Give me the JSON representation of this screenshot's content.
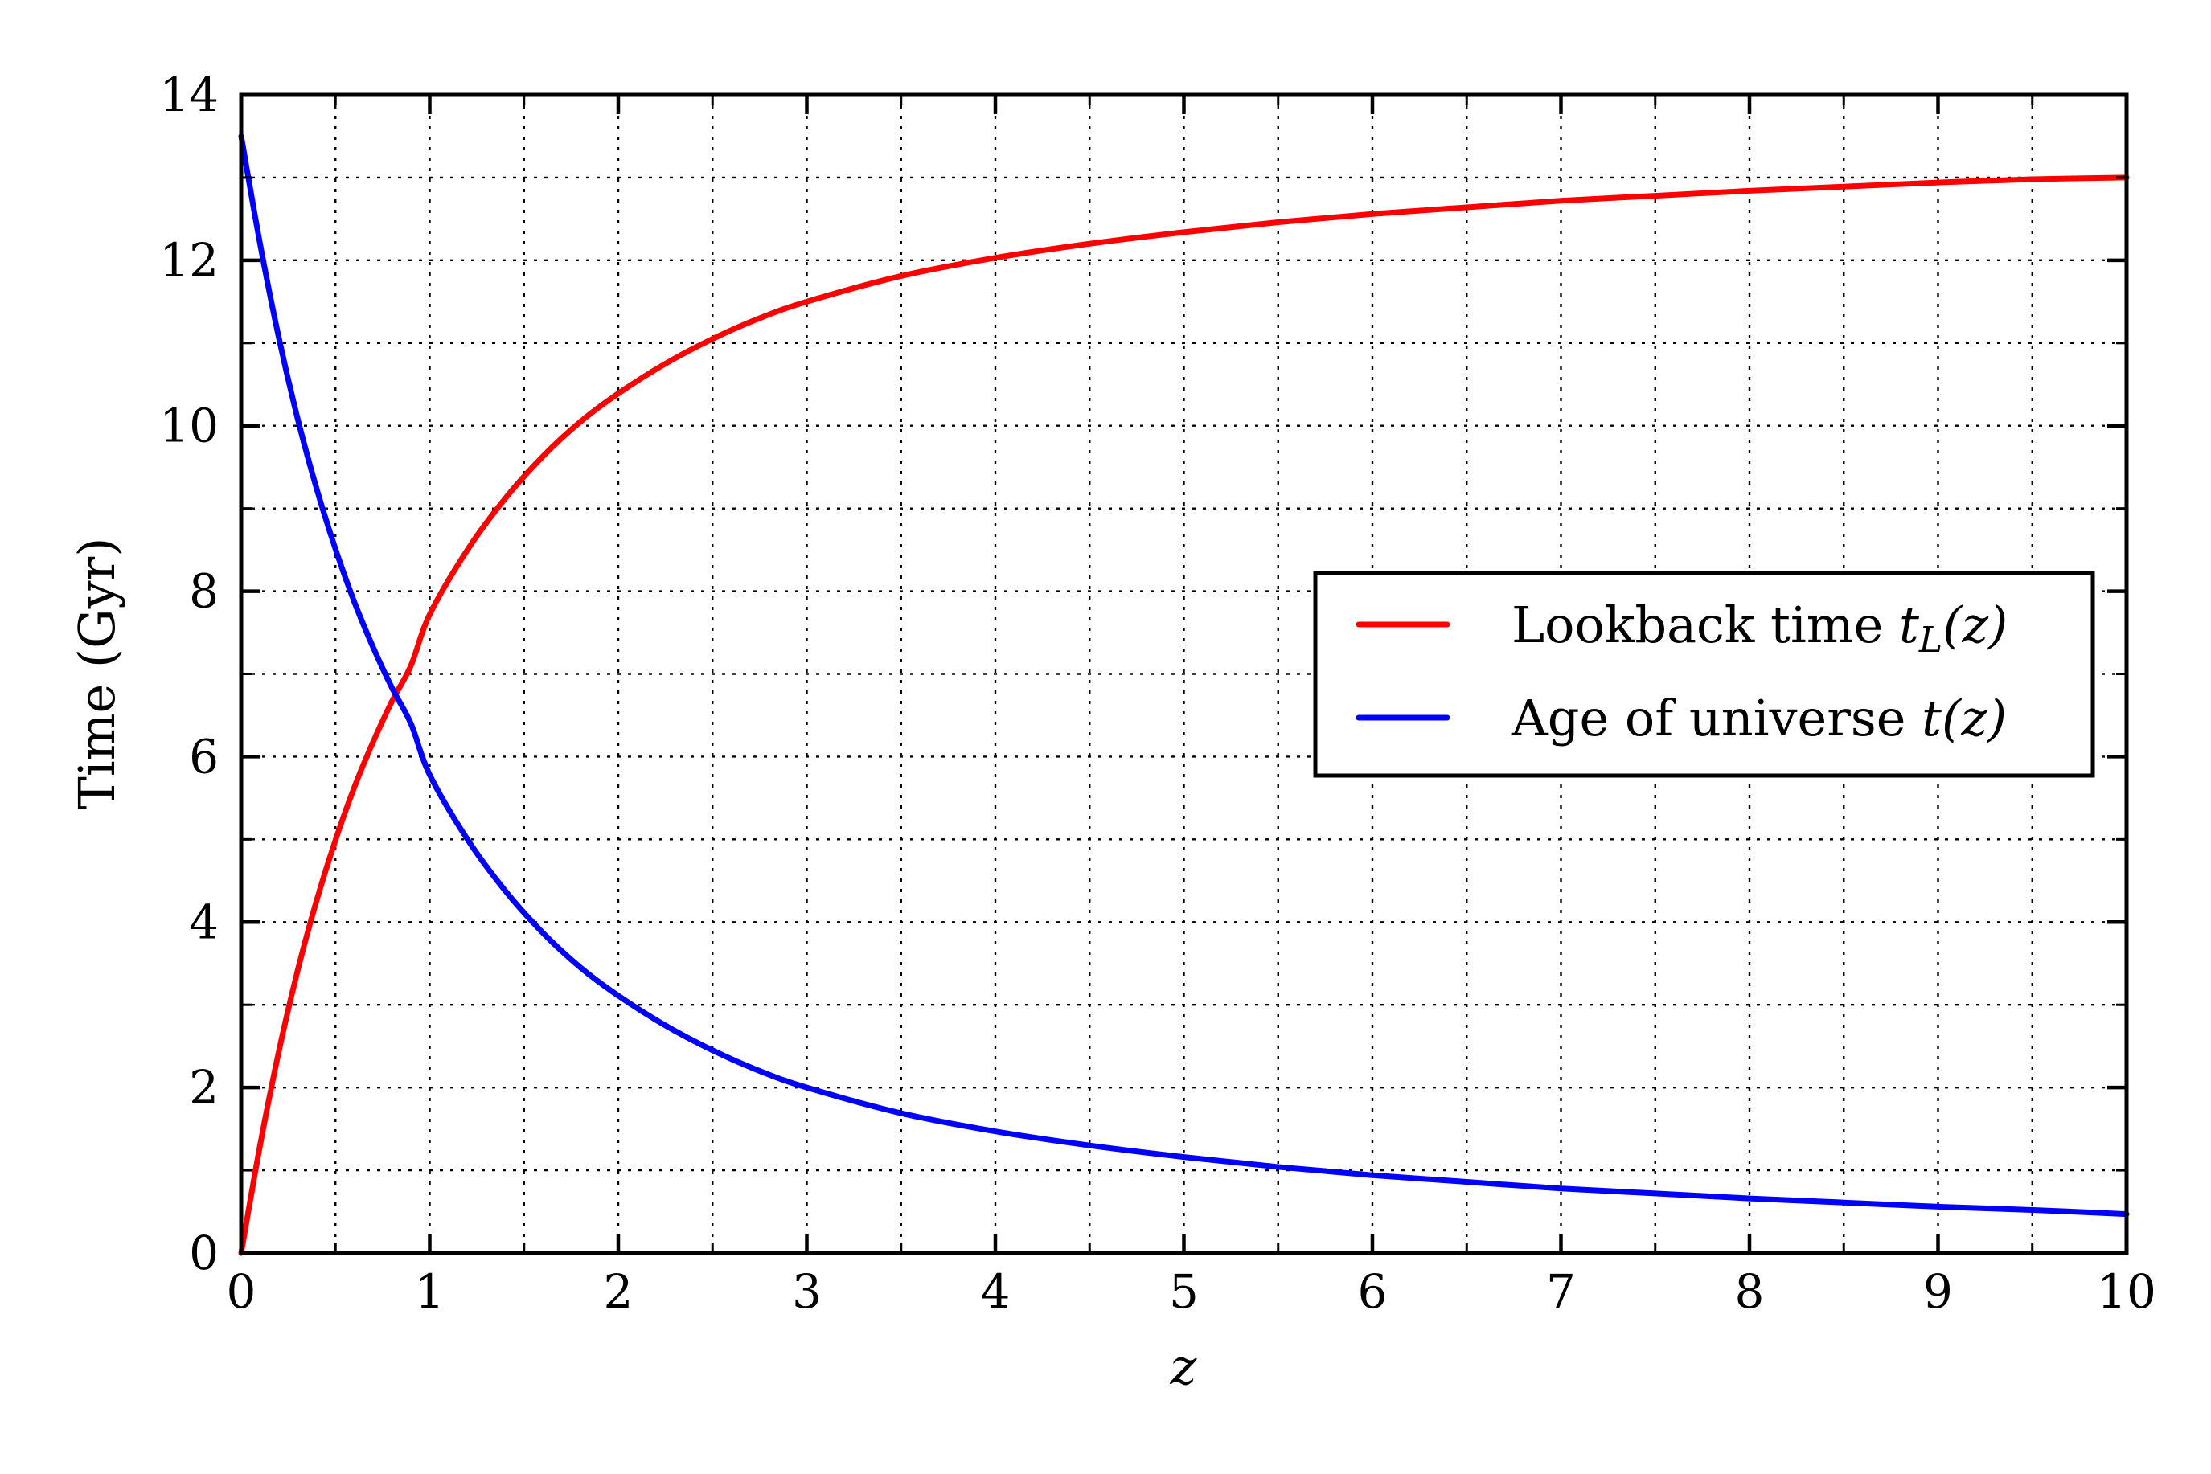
{
  "chart_data": {
    "type": "line",
    "xlabel": "z",
    "ylabel": "Time (Gyr)",
    "xlim": [
      0,
      10
    ],
    "ylim": [
      0,
      14
    ],
    "x_ticks": [
      0,
      1,
      2,
      3,
      4,
      5,
      6,
      7,
      8,
      9,
      10
    ],
    "y_ticks": [
      0,
      2,
      4,
      6,
      8,
      10,
      12,
      14
    ],
    "x_tick_labels": [
      "0",
      "1",
      "2",
      "3",
      "4",
      "5",
      "6",
      "7",
      "8",
      "9",
      "10"
    ],
    "y_tick_labels": [
      "0",
      "2",
      "4",
      "6",
      "8",
      "10",
      "12",
      "14"
    ],
    "x_minor_step": 0.5,
    "y_minor_step": 1,
    "grid": true,
    "legend_position": "center-right",
    "x": [
      0,
      0.1,
      0.2,
      0.3,
      0.4,
      0.5,
      0.6,
      0.7,
      0.8,
      0.9,
      1.0,
      1.2,
      1.4,
      1.6,
      1.8,
      2.0,
      2.25,
      2.5,
      2.75,
      3.0,
      3.5,
      4.0,
      4.5,
      5.0,
      5.5,
      6.0,
      6.5,
      7.0,
      7.5,
      8.0,
      8.5,
      9.0,
      9.5,
      10.0
    ],
    "series": [
      {
        "name": "Lookback time t_L(z)",
        "color": "#ff0000",
        "values": [
          0.0,
          1.3,
          2.44,
          3.42,
          4.26,
          4.99,
          5.63,
          6.18,
          6.67,
          7.1,
          7.72,
          8.5,
          9.12,
          9.63,
          10.05,
          10.39,
          10.75,
          11.05,
          11.3,
          11.5,
          11.81,
          12.03,
          12.2,
          12.34,
          12.46,
          12.56,
          12.64,
          12.72,
          12.78,
          12.84,
          12.89,
          12.94,
          12.98,
          13.0
        ]
      },
      {
        "name": "Age of universe t(z)",
        "color": "#0000ff",
        "values": [
          13.5,
          12.2,
          11.06,
          10.08,
          9.24,
          8.51,
          7.87,
          7.32,
          6.83,
          6.4,
          5.78,
          5.0,
          4.38,
          3.87,
          3.45,
          3.11,
          2.75,
          2.45,
          2.2,
          2.0,
          1.69,
          1.47,
          1.3,
          1.16,
          1.04,
          0.94,
          0.86,
          0.78,
          0.72,
          0.66,
          0.61,
          0.56,
          0.52,
          0.47
        ]
      }
    ]
  },
  "legend": {
    "entries": [
      {
        "prefix": "Lookback time ",
        "math": "t",
        "sub": "L",
        "suffix": "(z)"
      },
      {
        "prefix": "Age of universe ",
        "math": "t",
        "sub": "",
        "suffix": "(z)"
      }
    ]
  }
}
